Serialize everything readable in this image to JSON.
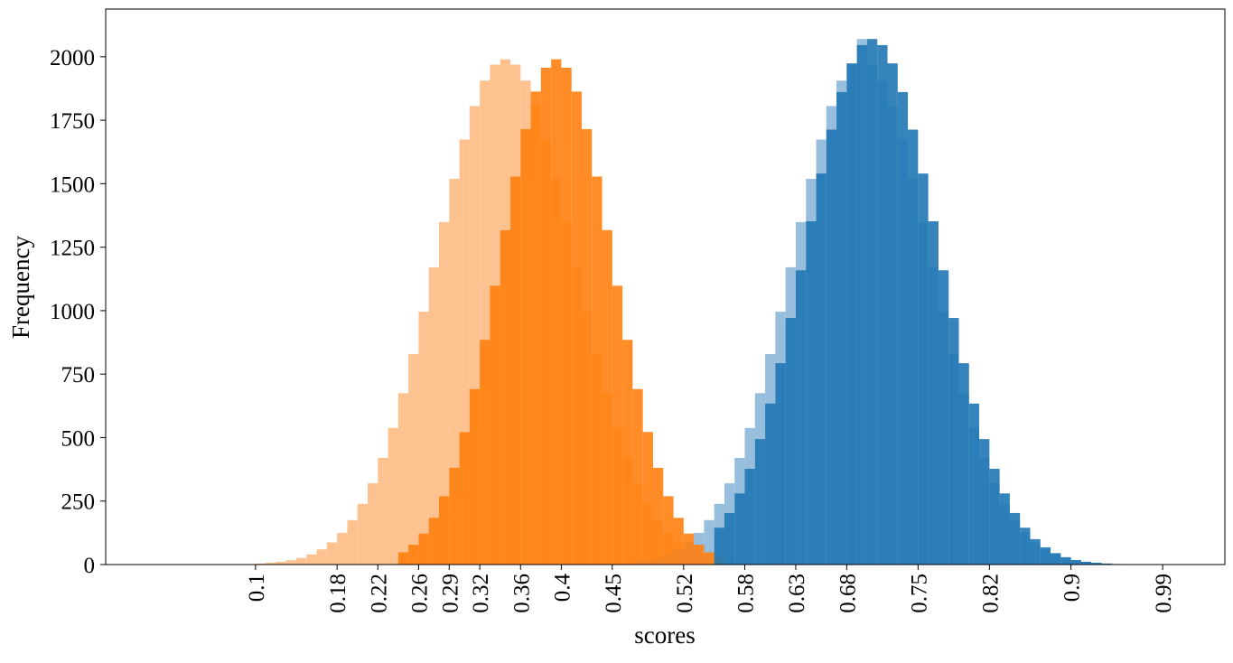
{
  "chart_data": {
    "type": "histogram",
    "x_label": "scores",
    "y_label": "Frequency",
    "xlim": [
      -0.047,
      1.051
    ],
    "ylim": [
      0,
      2188
    ],
    "xticks": [
      0.1,
      0.18,
      0.22,
      0.26,
      0.29,
      0.32,
      0.36,
      0.4,
      0.45,
      0.52,
      0.58,
      0.63,
      0.68,
      0.75,
      0.82,
      0.9,
      0.99
    ],
    "yticks": [
      0,
      250,
      500,
      750,
      1000,
      1250,
      1500,
      1750,
      2000
    ],
    "series": [
      {
        "color": "#fdbb84",
        "bins": [
          0.1,
          0.11,
          0.12,
          0.13,
          0.14,
          0.15,
          0.16,
          0.17,
          0.18,
          0.19,
          0.2,
          0.21,
          0.22,
          0.23,
          0.24,
          0.25,
          0.26,
          0.27,
          0.28,
          0.29,
          0.3,
          0.31,
          0.32,
          0.33,
          0.34,
          0.35,
          0.36,
          0.37,
          0.38,
          0.39,
          0.4,
          0.41,
          0.42,
          0.43,
          0.44,
          0.45,
          0.46,
          0.47,
          0.48,
          0.49,
          0.5,
          0.51,
          0.52,
          0.53,
          0.54,
          0.55,
          0.56,
          0.57,
          0.58,
          0.59,
          0.6
        ],
        "values": [
          4,
          7,
          11,
          17,
          26,
          40,
          60,
          87,
          125,
          175,
          239,
          320,
          420,
          538,
          675,
          829,
          996,
          1171,
          1349,
          1519,
          1674,
          1806,
          1906,
          1969,
          1990,
          1969,
          1906,
          1806,
          1674,
          1519,
          1349,
          1171,
          996,
          829,
          675,
          538,
          420,
          320,
          239,
          175,
          125,
          87,
          60,
          40,
          26,
          17,
          11,
          7,
          4,
          2
        ]
      },
      {
        "color": "#8db7d9",
        "bins": [
          0.45,
          0.46,
          0.47,
          0.48,
          0.49,
          0.5,
          0.51,
          0.52,
          0.53,
          0.54,
          0.55,
          0.56,
          0.57,
          0.58,
          0.59,
          0.6,
          0.61,
          0.62,
          0.63,
          0.64,
          0.65,
          0.66,
          0.67,
          0.68,
          0.69,
          0.7,
          0.71,
          0.72,
          0.73,
          0.74,
          0.75,
          0.76,
          0.77,
          0.78,
          0.79,
          0.8,
          0.81,
          0.82,
          0.83,
          0.84,
          0.85,
          0.86,
          0.87,
          0.88,
          0.89,
          0.9,
          0.91,
          0.92,
          0.93,
          0.94,
          0.95
        ],
        "values": [
          4,
          7,
          11,
          17,
          26,
          40,
          60,
          87,
          125,
          175,
          239,
          320,
          420,
          538,
          675,
          829,
          996,
          1171,
          1349,
          1519,
          1674,
          1806,
          1906,
          1969,
          2070,
          1969,
          1906,
          1806,
          1674,
          1519,
          1349,
          1171,
          996,
          829,
          675,
          538,
          420,
          320,
          239,
          175,
          125,
          87,
          60,
          40,
          26,
          17,
          11,
          7,
          4,
          2
        ]
      },
      {
        "color": "#ff7f0e",
        "bins": [
          0.24,
          0.25,
          0.26,
          0.27,
          0.28,
          0.29,
          0.3,
          0.31,
          0.32,
          0.33,
          0.34,
          0.35,
          0.36,
          0.37,
          0.38,
          0.39,
          0.4,
          0.41,
          0.42,
          0.43,
          0.44,
          0.45,
          0.46,
          0.47,
          0.48,
          0.49,
          0.5,
          0.51,
          0.52,
          0.53,
          0.54,
          0.55,
          0.56
        ],
        "values": [
          48,
          78,
          122,
          184,
          269,
          381,
          522,
          691,
          885,
          1098,
          1317,
          1528,
          1715,
          1863,
          1957,
          1990,
          1957,
          1863,
          1715,
          1528,
          1317,
          1098,
          885,
          691,
          522,
          381,
          269,
          184,
          122,
          78,
          48,
          29
        ]
      },
      {
        "color": "#1f77b4",
        "bins": [
          0.55,
          0.56,
          0.57,
          0.58,
          0.59,
          0.6,
          0.61,
          0.62,
          0.63,
          0.64,
          0.65,
          0.66,
          0.67,
          0.68,
          0.69,
          0.7,
          0.71,
          0.72,
          0.73,
          0.74,
          0.75,
          0.76,
          0.77,
          0.78,
          0.79,
          0.8,
          0.81,
          0.82,
          0.83,
          0.84,
          0.85,
          0.86,
          0.87,
          0.88,
          0.89,
          0.9,
          0.91,
          0.92,
          0.93,
          0.94,
          0.95,
          0.96,
          0.97
        ],
        "values": [
          145,
          203,
          280,
          377,
          494,
          634,
          793,
          971,
          1159,
          1352,
          1540,
          1713,
          1861,
          1974,
          2046,
          2070,
          2046,
          1974,
          1861,
          1713,
          1540,
          1352,
          1159,
          971,
          793,
          634,
          494,
          377,
          280,
          203,
          145,
          100,
          68,
          45,
          29,
          18,
          11,
          7,
          4,
          2,
          1,
          1
        ]
      }
    ]
  }
}
